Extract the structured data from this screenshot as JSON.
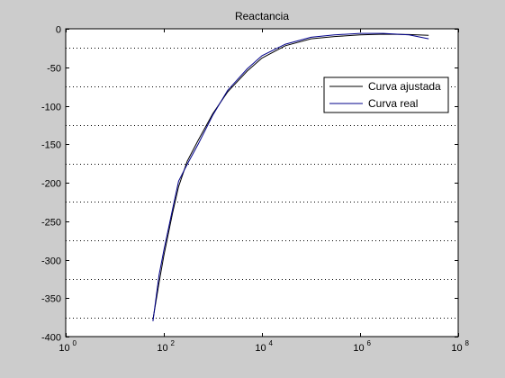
{
  "chart_data": {
    "type": "line",
    "title": "Reactancia",
    "xlabel": "",
    "ylabel": "",
    "xscale": "log",
    "xlim": [
      1,
      100000000
    ],
    "ylim": [
      -400,
      0
    ],
    "yticks": [
      0,
      -50,
      -100,
      -150,
      -200,
      -250,
      -300,
      -350,
      -400
    ],
    "yticklabels": [
      "0",
      "-50",
      "-100",
      "-150",
      "-200",
      "-250",
      "-300",
      "-350",
      "-400"
    ],
    "xticks": [
      1,
      100,
      10000,
      1000000,
      100000000
    ],
    "xticklabels": [
      {
        "base": "10",
        "exp": "0"
      },
      {
        "base": "10",
        "exp": "2"
      },
      {
        "base": "10",
        "exp": "4"
      },
      {
        "base": "10",
        "exp": "6"
      },
      {
        "base": "10",
        "exp": "8"
      }
    ],
    "grid": {
      "x": false,
      "y": "dotted-minor"
    },
    "legend_position": "top-right",
    "series": [
      {
        "name": "Curva ajustada",
        "color": "#000000",
        "x": [
          60,
          80,
          100,
          150,
          200,
          300,
          500,
          1000,
          2000,
          5000,
          10000,
          30000,
          100000,
          300000,
          1000000,
          3000000,
          10000000,
          25000000
        ],
        "y": [
          -378,
          -330,
          -295,
          -240,
          -205,
          -172,
          -145,
          -110,
          -82,
          -55,
          -38,
          -22,
          -13,
          -10,
          -8,
          -7,
          -7.5,
          -8.5
        ]
      },
      {
        "name": "Curva real",
        "color": "#00008b",
        "x": [
          60,
          80,
          100,
          150,
          200,
          300,
          500,
          1000,
          2000,
          5000,
          10000,
          30000,
          100000,
          300000,
          1000000,
          3000000,
          10000000,
          25000000
        ],
        "y": [
          -380,
          -320,
          -288,
          -235,
          -198,
          -176,
          -150,
          -112,
          -80,
          -52,
          -35,
          -20,
          -11,
          -8,
          -6,
          -6,
          -8,
          -13
        ]
      }
    ]
  }
}
